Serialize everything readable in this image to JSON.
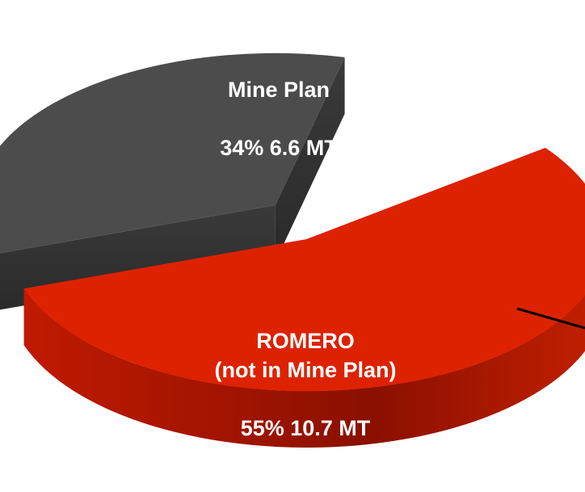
{
  "chart_data": {
    "type": "pie",
    "categories": [
      "Mine Plan",
      "ROMERO\n(not in Mine Plan)"
    ],
    "values": [
      34,
      55
    ],
    "value_labels": [
      "34% 6.6 MT",
      "55% 10.7 MT"
    ],
    "colors": [
      "#4c4c4c",
      "#dd2200"
    ]
  }
}
